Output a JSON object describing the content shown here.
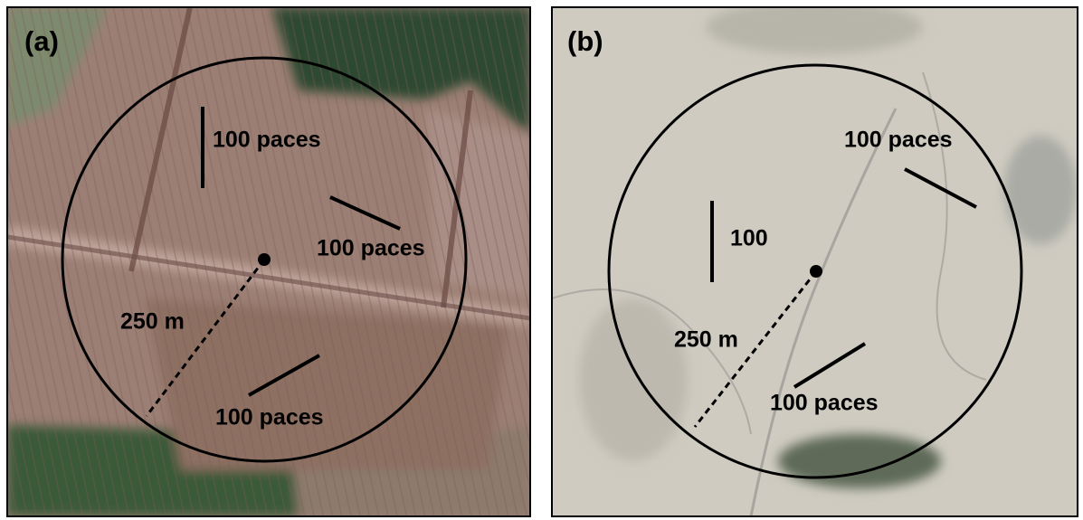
{
  "panels": [
    {
      "label": "(a)",
      "annotations": [
        "100 paces",
        "100 paces",
        "250 m",
        "100 paces"
      ]
    },
    {
      "label": "(b)",
      "annotations": [
        "100 paces",
        "100",
        "250 m",
        "100 paces"
      ]
    }
  ]
}
